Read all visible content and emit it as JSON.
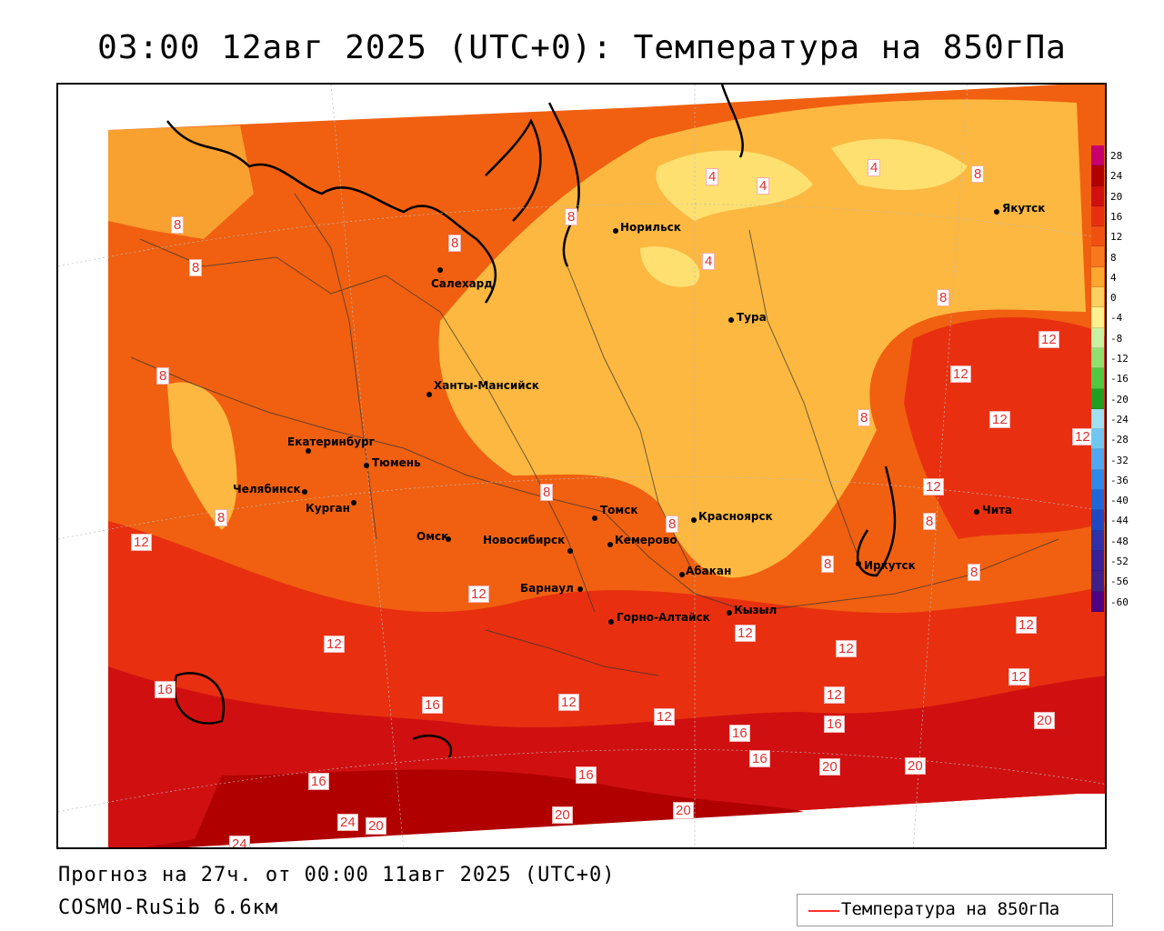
{
  "title": "03:00 12авг 2025 (UTC+0): Температура на 850гПа",
  "forecast_line": "Прогноз на 27ч. от 00:00 11авг 2025 (UTC+0)",
  "model_line": "COSMO-RuSib 6.6км",
  "legend": {
    "label": "Температура на 850гПа",
    "line_color": "#ff3030"
  },
  "colorbar": {
    "ticks": [
      "28",
      "24",
      "20",
      "16",
      "12",
      "8",
      "4",
      "0",
      "-4",
      "-8",
      "-12",
      "-16",
      "-20",
      "-24",
      "-28",
      "-32",
      "-36",
      "-40",
      "-44",
      "-48",
      "-52",
      "-56",
      "-60"
    ],
    "colors": [
      "#c8006e",
      "#b00000",
      "#d01010",
      "#e83010",
      "#f05010",
      "#f87820",
      "#fca830",
      "#fcd060",
      "#fcf090",
      "#c8f0a0",
      "#90e070",
      "#50c840",
      "#20a020",
      "#a0e0f0",
      "#70c8f0",
      "#50a8f0",
      "#3088e8",
      "#2068d8",
      "#2048c0",
      "#3030a8",
      "#3a2098",
      "#402088",
      "#500080"
    ]
  },
  "cities": [
    {
      "name": "Норильск"
    },
    {
      "name": "Салехард"
    },
    {
      "name": "Тура"
    },
    {
      "name": "Якутск"
    },
    {
      "name": "Ханты-Мансийск"
    },
    {
      "name": "Екатеринбург"
    },
    {
      "name": "Тюмень"
    },
    {
      "name": "Челябинск"
    },
    {
      "name": "Курган"
    },
    {
      "name": "Омск"
    },
    {
      "name": "Новосибирск"
    },
    {
      "name": "Томск"
    },
    {
      "name": "Кемерово"
    },
    {
      "name": "Красноярск"
    },
    {
      "name": "Абакан"
    },
    {
      "name": "Барнаул"
    },
    {
      "name": "Горно-Алтайск"
    },
    {
      "name": "Кызыл"
    },
    {
      "name": "Иркутск"
    },
    {
      "name": "Чита"
    }
  ],
  "contour_labels": [
    "4",
    "4",
    "4",
    "8",
    "4",
    "8",
    "8",
    "8",
    "8",
    "8",
    "8",
    "12",
    "12",
    "12",
    "12",
    "8",
    "12",
    "8",
    "8",
    "8",
    "8",
    "8",
    "12",
    "12",
    "8",
    "12",
    "12",
    "12",
    "12",
    "16",
    "16",
    "12",
    "12",
    "12",
    "12",
    "16",
    "16",
    "16",
    "16",
    "20",
    "20",
    "20",
    "16",
    "20",
    "20",
    "24",
    "20",
    "24"
  ]
}
